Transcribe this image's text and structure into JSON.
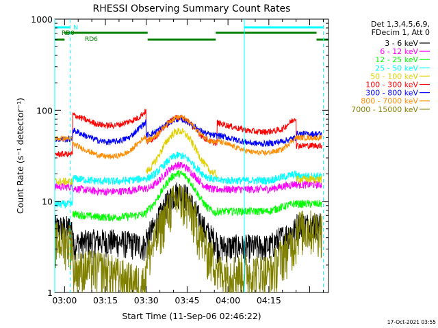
{
  "chart_data": {
    "type": "line",
    "title": "RHESSI Observing Summary Count Rates",
    "xlabel": "Start Time (11-Sep-06 02:46:22)",
    "ylabel": "Count Rate (s⁻¹ detector⁻¹)",
    "y_scale": "log",
    "ylim": [
      1,
      1000
    ],
    "xlim_minutes": [
      -3.6,
      96.9
    ],
    "x_tick_labels": [
      "03:00",
      "03:15",
      "03:30",
      "03:45",
      "04:00",
      "04:15"
    ],
    "x_tick_minutes": [
      0,
      15,
      30,
      45,
      60,
      75
    ],
    "y_tick_labels": [
      "1",
      "10",
      "100",
      "1000"
    ],
    "y_tick_values": [
      1,
      10,
      100,
      1000
    ],
    "legend_header": [
      "Det 1,3,4,5,6,9,",
      "FDecim 1, Att 0"
    ],
    "legend_placement": "right",
    "grid": false,
    "annotations": {
      "N_label": "N",
      "RD0_label": "RD0",
      "RD6_label": "RD6"
    },
    "attenuator_transitions_minutes": [
      -3.6,
      95.0
    ],
    "night_transitions_minutes": [
      2.0,
      95.0
    ],
    "solid_cyan_lines_minutes": [
      -3.6,
      66.0
    ],
    "footer": "17-Oct-2021 03:55",
    "series": [
      {
        "name": "3 - 6 keV",
        "color": "#000000"
      },
      {
        "name": "6 - 12 keV",
        "color": "#ff00ff"
      },
      {
        "name": "12 - 25 keV",
        "color": "#00ff00"
      },
      {
        "name": "25 - 50 keV",
        "color": "#00ffff"
      },
      {
        "name": "50 - 100 keV",
        "color": "#e0d000"
      },
      {
        "name": "100 - 300 keV",
        "color": "#ff0000"
      },
      {
        "name": "300 - 800 keV",
        "color": "#0000ff"
      },
      {
        "name": "800 - 7000 keV",
        "color": "#ff8c00"
      },
      {
        "name": "7000 - 15000 keV",
        "color": "#808000"
      }
    ]
  }
}
